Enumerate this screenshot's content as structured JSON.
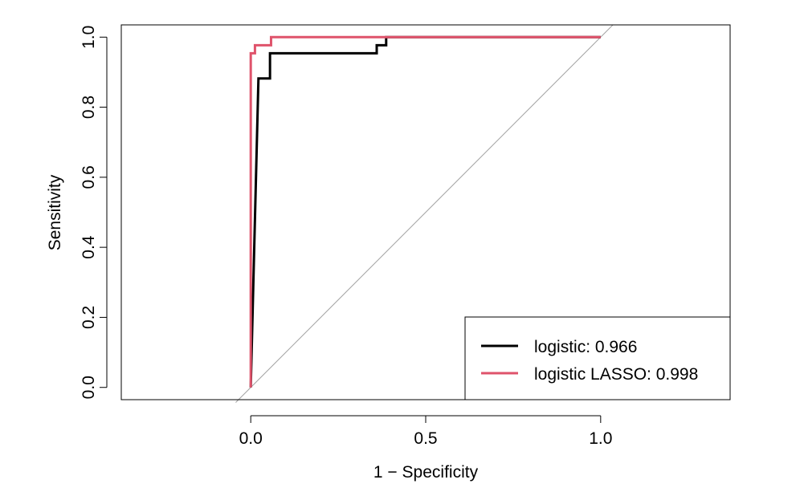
{
  "chart_data": {
    "type": "line",
    "title": "",
    "xlabel": "1 − Specificity",
    "ylabel": "Sensitivity",
    "xlim": [
      -0.37,
      1.37
    ],
    "ylim": [
      -0.035,
      1.035
    ],
    "x_ticks": [
      {
        "value": 0.0,
        "label": "0.0"
      },
      {
        "value": 0.5,
        "label": "0.5"
      },
      {
        "value": 1.0,
        "label": "1.0"
      }
    ],
    "y_ticks": [
      {
        "value": 0.0,
        "label": "0.0"
      },
      {
        "value": 0.2,
        "label": "0.2"
      },
      {
        "value": 0.4,
        "label": "0.4"
      },
      {
        "value": 0.6,
        "label": "0.6"
      },
      {
        "value": 0.8,
        "label": "0.8"
      },
      {
        "value": 1.0,
        "label": "1.0"
      }
    ],
    "reference_line": {
      "color": "#a0a0a0",
      "points": [
        [
          -0.043,
          -0.043
        ],
        [
          1.035,
          1.035
        ]
      ]
    },
    "legend": {
      "position": "bottom-right"
    },
    "series": [
      {
        "name": "logistic: 0.966",
        "color": "#000000",
        "x": [
          0.0,
          0.022,
          0.022,
          0.055,
          0.055,
          0.36,
          0.36,
          0.387,
          0.387,
          1.0
        ],
        "y": [
          0.0,
          0.882,
          0.882,
          0.882,
          0.954,
          0.954,
          0.977,
          0.977,
          1.0,
          1.0
        ]
      },
      {
        "name": "logistic LASSO: 0.998",
        "color": "#df536b",
        "x": [
          0.0,
          0.0,
          0.012,
          0.012,
          0.058,
          0.058,
          1.0
        ],
        "y": [
          0.0,
          0.954,
          0.954,
          0.977,
          0.977,
          1.0,
          1.0
        ]
      }
    ]
  }
}
